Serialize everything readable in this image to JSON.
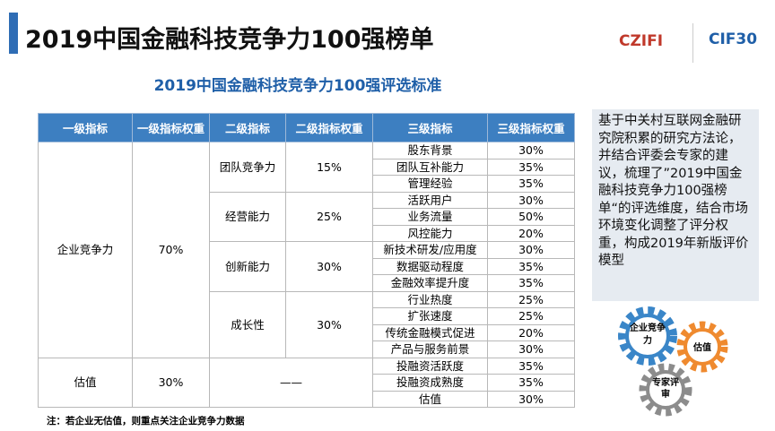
{
  "header": {
    "title": "2019中国金融科技竞争力100强榜单",
    "subtitle": "2019中国金融科技竞争力100强评选标准",
    "logos": [
      "CZIFI",
      "CIF30"
    ]
  },
  "table": {
    "columns": [
      "一级指标",
      "一级指标权重",
      "二级指标",
      "二级指标权重",
      "三级指标",
      "三级指标权重"
    ],
    "groups": [
      {
        "name": "企业竞争力",
        "weight": "70%",
        "subgroups": [
          {
            "name": "团队竞争力",
            "weight": "15%",
            "items": [
              [
                "股东背景",
                "30%"
              ],
              [
                "团队互补能力",
                "35%"
              ],
              [
                "管理经验",
                "35%"
              ]
            ]
          },
          {
            "name": "经营能力",
            "weight": "25%",
            "items": [
              [
                "活跃用户",
                "30%"
              ],
              [
                "业务流量",
                "50%"
              ],
              [
                "风控能力",
                "20%"
              ]
            ]
          },
          {
            "name": "创新能力",
            "weight": "30%",
            "items": [
              [
                "新技术研发/应用度",
                "30%"
              ],
              [
                "数据驱动程度",
                "35%"
              ],
              [
                "金融效率提升度",
                "35%"
              ]
            ]
          },
          {
            "name": "成长性",
            "weight": "30%",
            "items": [
              [
                "行业热度",
                "25%"
              ],
              [
                "扩张速度",
                "25%"
              ],
              [
                "传统金融模式促进",
                "20%"
              ],
              [
                "产品与服务前景",
                "30%"
              ]
            ]
          }
        ]
      },
      {
        "name": "估值",
        "weight": "30%",
        "subgroups": [
          {
            "name": "——",
            "weight": null,
            "items": [
              [
                "投融资活跃度",
                "35%"
              ],
              [
                "投融资成熟度",
                "35%"
              ],
              [
                "估值",
                "30%"
              ]
            ]
          }
        ]
      }
    ]
  },
  "note": "注：若企业无估值，则重点关注企业竞争力数据",
  "sidebar": {
    "text": "基于中关村互联网金融研究院积累的研究方法论，并结合评委会专家的建议，梳理了”2019中国金融科技竞争力100强榜单“的评选维度，结合市场环境变化调整了评分权重，构成2019年新版评价模型"
  },
  "gears": [
    "企业竞争力",
    "估值",
    "专家评审"
  ]
}
